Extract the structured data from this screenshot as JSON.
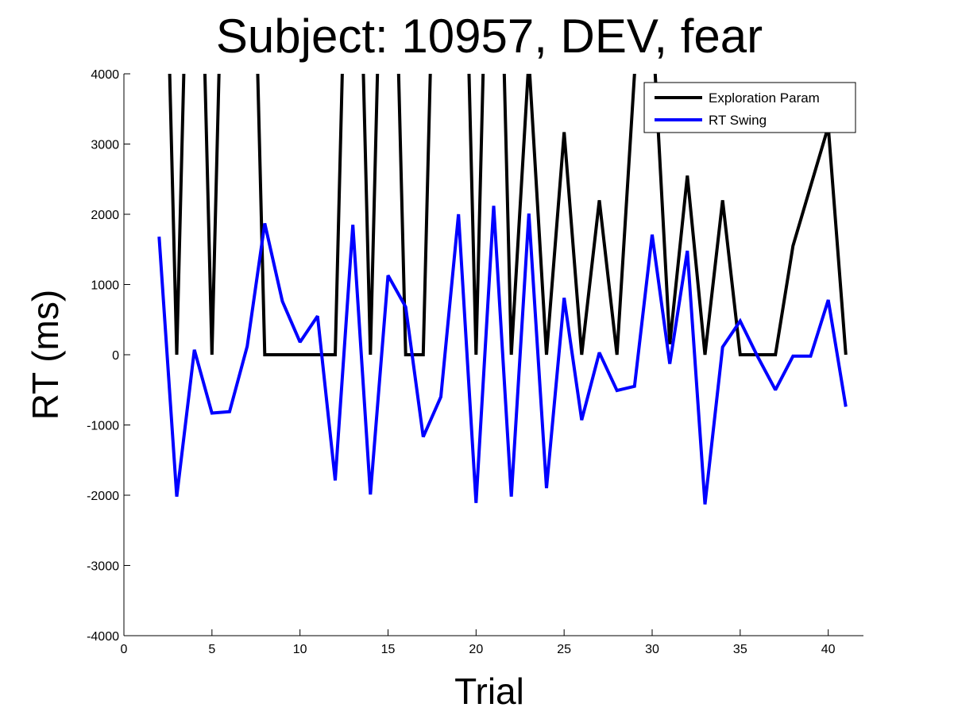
{
  "chart_data": {
    "type": "line",
    "title": "Subject: 10957, DEV, fear",
    "xlabel": "Trial",
    "ylabel": "RT (ms)",
    "xlim": [
      0,
      42
    ],
    "ylim": [
      -4000,
      4000
    ],
    "xticks": [
      0,
      5,
      10,
      15,
      20,
      25,
      30,
      35,
      40
    ],
    "yticks": [
      -4000,
      -3000,
      -2000,
      -1000,
      0,
      1000,
      2000,
      3000,
      4000
    ],
    "grid": false,
    "legend_position": "top-right",
    "series": [
      {
        "name": "Exploration Param",
        "color": "#000000",
        "x": [
          2,
          3,
          4,
          5,
          6,
          7,
          8,
          9,
          10,
          11,
          12,
          13,
          14,
          15,
          16,
          17,
          18,
          19,
          20,
          21,
          22,
          23,
          24,
          25,
          26,
          27,
          28,
          29,
          30,
          31,
          32,
          33,
          34,
          35,
          36,
          37,
          38,
          39,
          40,
          41
        ],
        "values": [
          10000,
          0,
          10000,
          0,
          10000,
          10000,
          0,
          0,
          0,
          0,
          0,
          10000,
          0,
          10000,
          0,
          0,
          10000,
          10000,
          0,
          10000,
          0,
          4200,
          0,
          3170,
          0,
          2200,
          0,
          4000,
          4800,
          150,
          2550,
          0,
          2200,
          0,
          0,
          0,
          1550,
          2400,
          3250,
          0
        ]
      },
      {
        "name": "RT Swing",
        "color": "#0000ff",
        "x": [
          2,
          3,
          4,
          5,
          6,
          7,
          8,
          9,
          10,
          11,
          12,
          13,
          14,
          15,
          16,
          17,
          18,
          19,
          20,
          21,
          22,
          23,
          24,
          25,
          26,
          27,
          28,
          29,
          30,
          31,
          32,
          33,
          34,
          35,
          36,
          37,
          38,
          39,
          40,
          41
        ],
        "values": [
          1680,
          -2020,
          70,
          -830,
          -810,
          120,
          1870,
          760,
          180,
          550,
          -1790,
          1850,
          -1990,
          1130,
          680,
          -1170,
          -600,
          2000,
          -2110,
          2120,
          -2020,
          2010,
          -1900,
          810,
          -930,
          30,
          -510,
          -450,
          1710,
          -130,
          1480,
          -2130,
          110,
          480,
          -30,
          -500,
          -20,
          -20,
          780,
          -740
        ]
      }
    ]
  }
}
